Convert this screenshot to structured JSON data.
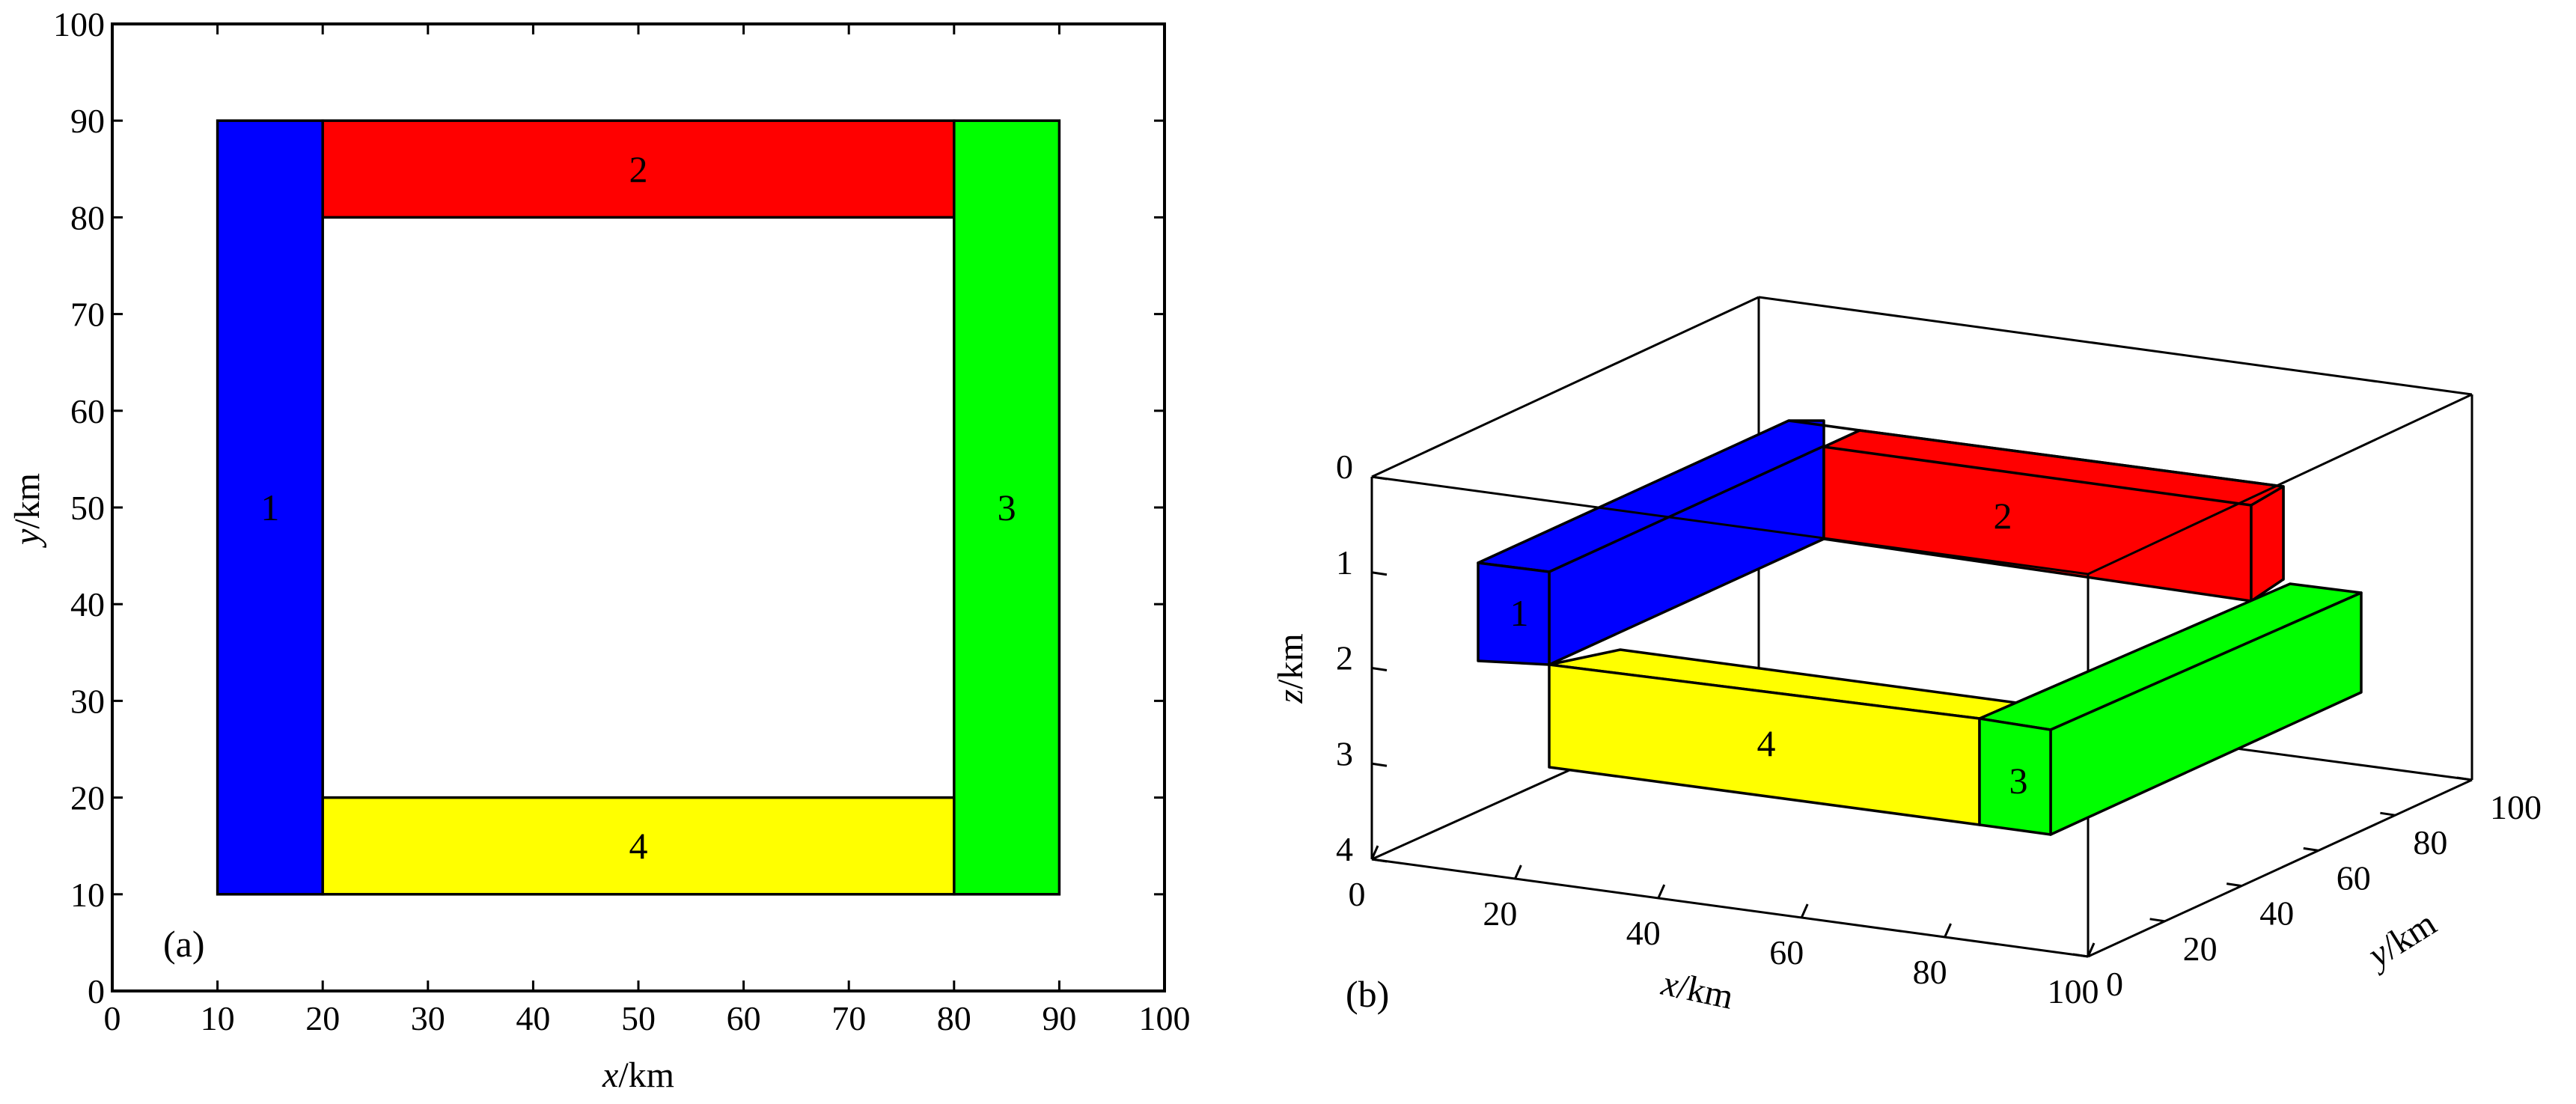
{
  "panel_a": {
    "label": "(a)",
    "x_label_var": "x",
    "x_label_unit": "/km",
    "y_label_var": "y",
    "y_label_unit": "/km",
    "x_ticks": [
      "0",
      "10",
      "20",
      "30",
      "40",
      "50",
      "60",
      "70",
      "80",
      "90",
      "100"
    ],
    "y_ticks": [
      "0",
      "10",
      "20",
      "30",
      "40",
      "50",
      "60",
      "70",
      "80",
      "90",
      "100"
    ],
    "blocks": [
      {
        "id": "1",
        "label": "1",
        "color": "#0000ff",
        "x": [
          10,
          20
        ],
        "y": [
          10,
          90
        ]
      },
      {
        "id": "2",
        "label": "2",
        "color": "#ff0000",
        "x": [
          20,
          80
        ],
        "y": [
          80,
          90
        ]
      },
      {
        "id": "3",
        "label": "3",
        "color": "#00ff00",
        "x": [
          80,
          90
        ],
        "y": [
          10,
          90
        ]
      },
      {
        "id": "4",
        "label": "4",
        "color": "#ffff00",
        "x": [
          20,
          80
        ],
        "y": [
          10,
          20
        ]
      }
    ]
  },
  "panel_b": {
    "label": "(b)",
    "x_label_var": "x",
    "x_label_unit": "/km",
    "y_label_var": "y",
    "y_label_unit": "/km",
    "z_label_var": "z",
    "z_label_unit": "/km",
    "x_ticks": [
      "0",
      "20",
      "40",
      "60",
      "80",
      "100"
    ],
    "y_ticks": [
      "0",
      "20",
      "40",
      "60",
      "80",
      "100"
    ],
    "z_ticks": [
      "0",
      "1",
      "2",
      "3",
      "4"
    ],
    "block_labels": [
      "1",
      "2",
      "3",
      "4"
    ]
  }
}
